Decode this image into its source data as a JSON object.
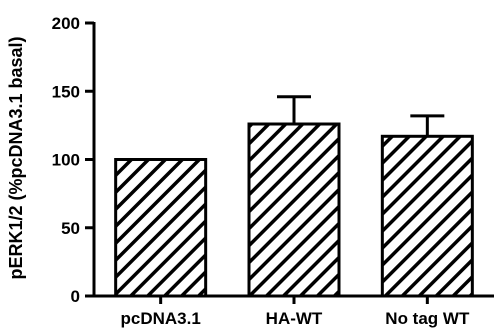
{
  "chart_data": {
    "type": "bar",
    "title": "",
    "xlabel": "",
    "ylabel": "pERK1/2 (%pcDNA3.1 basal)",
    "categories": [
      "pcDNA3.1",
      "HA-WT",
      "No tag WT"
    ],
    "values": [
      100,
      126,
      117
    ],
    "error_upper": [
      0,
      20,
      15
    ],
    "ylim": [
      0,
      200
    ],
    "yticks": [
      0,
      50,
      100,
      150,
      200
    ],
    "ytick_labels": [
      "0",
      "50",
      "100",
      "150",
      "200"
    ],
    "bar_fill": "diagonal-hatch",
    "colors": {
      "bar_stroke": "#000000",
      "hatch": "#000000",
      "background": "#ffffff"
    },
    "grid": false,
    "legend": "none"
  }
}
